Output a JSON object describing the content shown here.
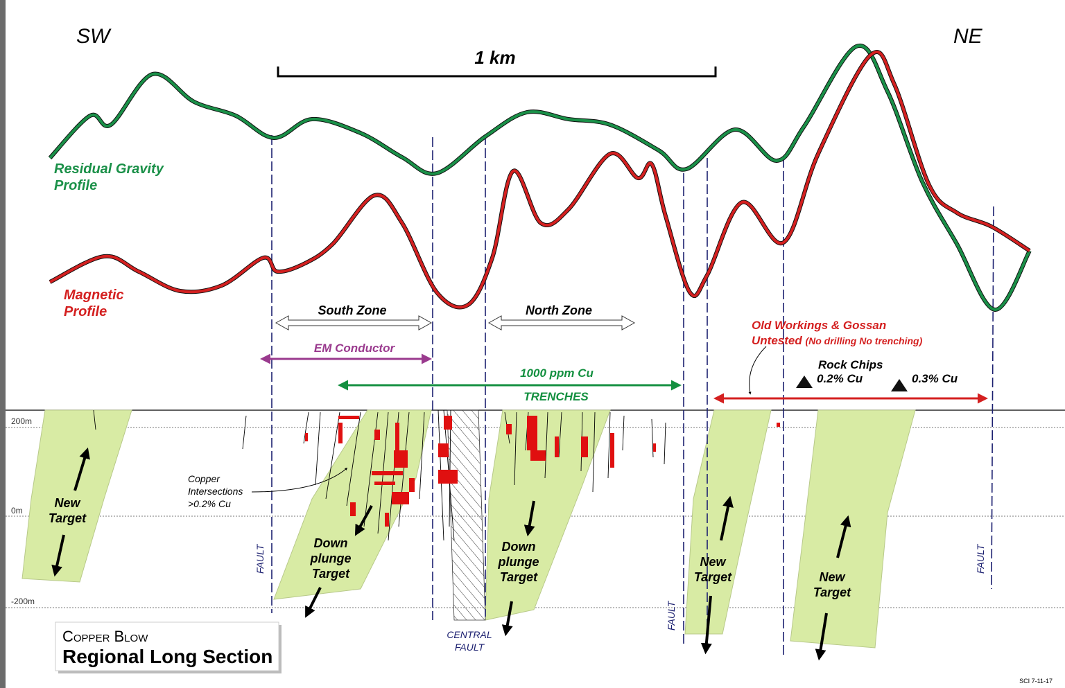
{
  "header": {
    "left": "SW",
    "right": "NE",
    "scale": "1 km"
  },
  "profiles": {
    "gravity": [
      "Residual Gravity",
      "Profile"
    ],
    "magnetic": [
      "Magnetic",
      "Profile"
    ]
  },
  "zones": {
    "south": "South Zone",
    "north": "North Zone",
    "em": "EM Conductor",
    "copper": "1000 ppm Cu",
    "trenches": "TRENCHES",
    "old_workings": "Old Workings & Gossan",
    "untested": "Untested",
    "untested_note": "(No drilling No trenching)",
    "rock_chips": "Rock Chips",
    "chip_1": "0.2% Cu",
    "chip_2": "0.3% Cu"
  },
  "elevations": [
    "200m",
    "0m",
    "-200m"
  ],
  "intersections": [
    "Copper",
    "Intersections",
    ">0.2% Cu"
  ],
  "targets": [
    [
      "New",
      "Target"
    ],
    [
      "Down",
      "plunge",
      "Target"
    ],
    [
      "Down",
      "plunge",
      "Target"
    ],
    [
      "New",
      "Target"
    ],
    [
      "New",
      "Target"
    ]
  ],
  "faults": [
    "FAULT",
    "FAULT",
    "FAULT"
  ],
  "central_fault": [
    "CENTRAL",
    "FAULT"
  ],
  "title": {
    "small": "Copper Blow",
    "main": "Regional Long Section"
  },
  "footer": "SCI 7-11-17"
}
